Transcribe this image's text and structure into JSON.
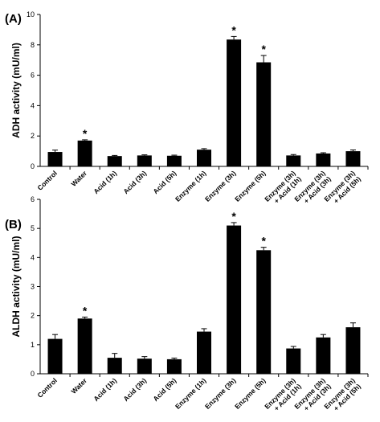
{
  "chart_data": [
    {
      "type": "bar",
      "panel_label": "(A)",
      "ylabel": "ADH  activity  (mU/ml)",
      "ylim": [
        0,
        10
      ],
      "yticks": [
        0,
        2,
        4,
        6,
        8,
        10
      ],
      "categories": [
        [
          "Control"
        ],
        [
          "Water"
        ],
        [
          "Acid (1h)"
        ],
        [
          "Acid (3h)"
        ],
        [
          "Acid (5h)"
        ],
        [
          "Enzyme (1h)"
        ],
        [
          "Enzyme (3h)"
        ],
        [
          "Enzyme (5h)"
        ],
        [
          "Enzyme (3h)",
          "+ Acid (1h)"
        ],
        [
          "Enzyme (3h)",
          "+ Acid (3h)"
        ],
        [
          "Enzyme (3h)",
          "+ Acid (5h)"
        ]
      ],
      "values": [
        0.95,
        1.7,
        0.68,
        0.72,
        0.7,
        1.1,
        8.35,
        6.85,
        0.72,
        0.85,
        1.0
      ],
      "errors": [
        0.12,
        0.05,
        0.04,
        0.04,
        0.04,
        0.07,
        0.2,
        0.45,
        0.06,
        0.05,
        0.08
      ],
      "significant": [
        false,
        true,
        false,
        false,
        false,
        false,
        true,
        true,
        false,
        false,
        false
      ],
      "significance_marker": "*",
      "grid": false
    },
    {
      "type": "bar",
      "panel_label": "(B)",
      "ylabel": "ALDH  activity  (mU/ml)",
      "ylim": [
        0,
        6
      ],
      "yticks": [
        0,
        1,
        2,
        3,
        4,
        5,
        6
      ],
      "categories": [
        [
          "Control"
        ],
        [
          "Water"
        ],
        [
          "Acid (1h)"
        ],
        [
          "Acid (3h)"
        ],
        [
          "Acid (5h)"
        ],
        [
          "Enzyme (1h)"
        ],
        [
          "Enzyme (3h)"
        ],
        [
          "Enzyme (5h)"
        ],
        [
          "Enzyme (3h)",
          "+ Acid (1h)"
        ],
        [
          "Enzyme (3h)",
          "+ Acid (3h)"
        ],
        [
          "Enzyme (3h)",
          "+ Acid (5h)"
        ]
      ],
      "values": [
        1.2,
        1.9,
        0.55,
        0.52,
        0.5,
        1.45,
        5.1,
        4.25,
        0.87,
        1.25,
        1.6
      ],
      "errors": [
        0.15,
        0.05,
        0.15,
        0.07,
        0.04,
        0.1,
        0.1,
        0.1,
        0.07,
        0.1,
        0.15
      ],
      "significant": [
        false,
        true,
        false,
        false,
        false,
        false,
        true,
        true,
        false,
        false,
        false
      ],
      "significance_marker": "*",
      "grid": false
    }
  ]
}
